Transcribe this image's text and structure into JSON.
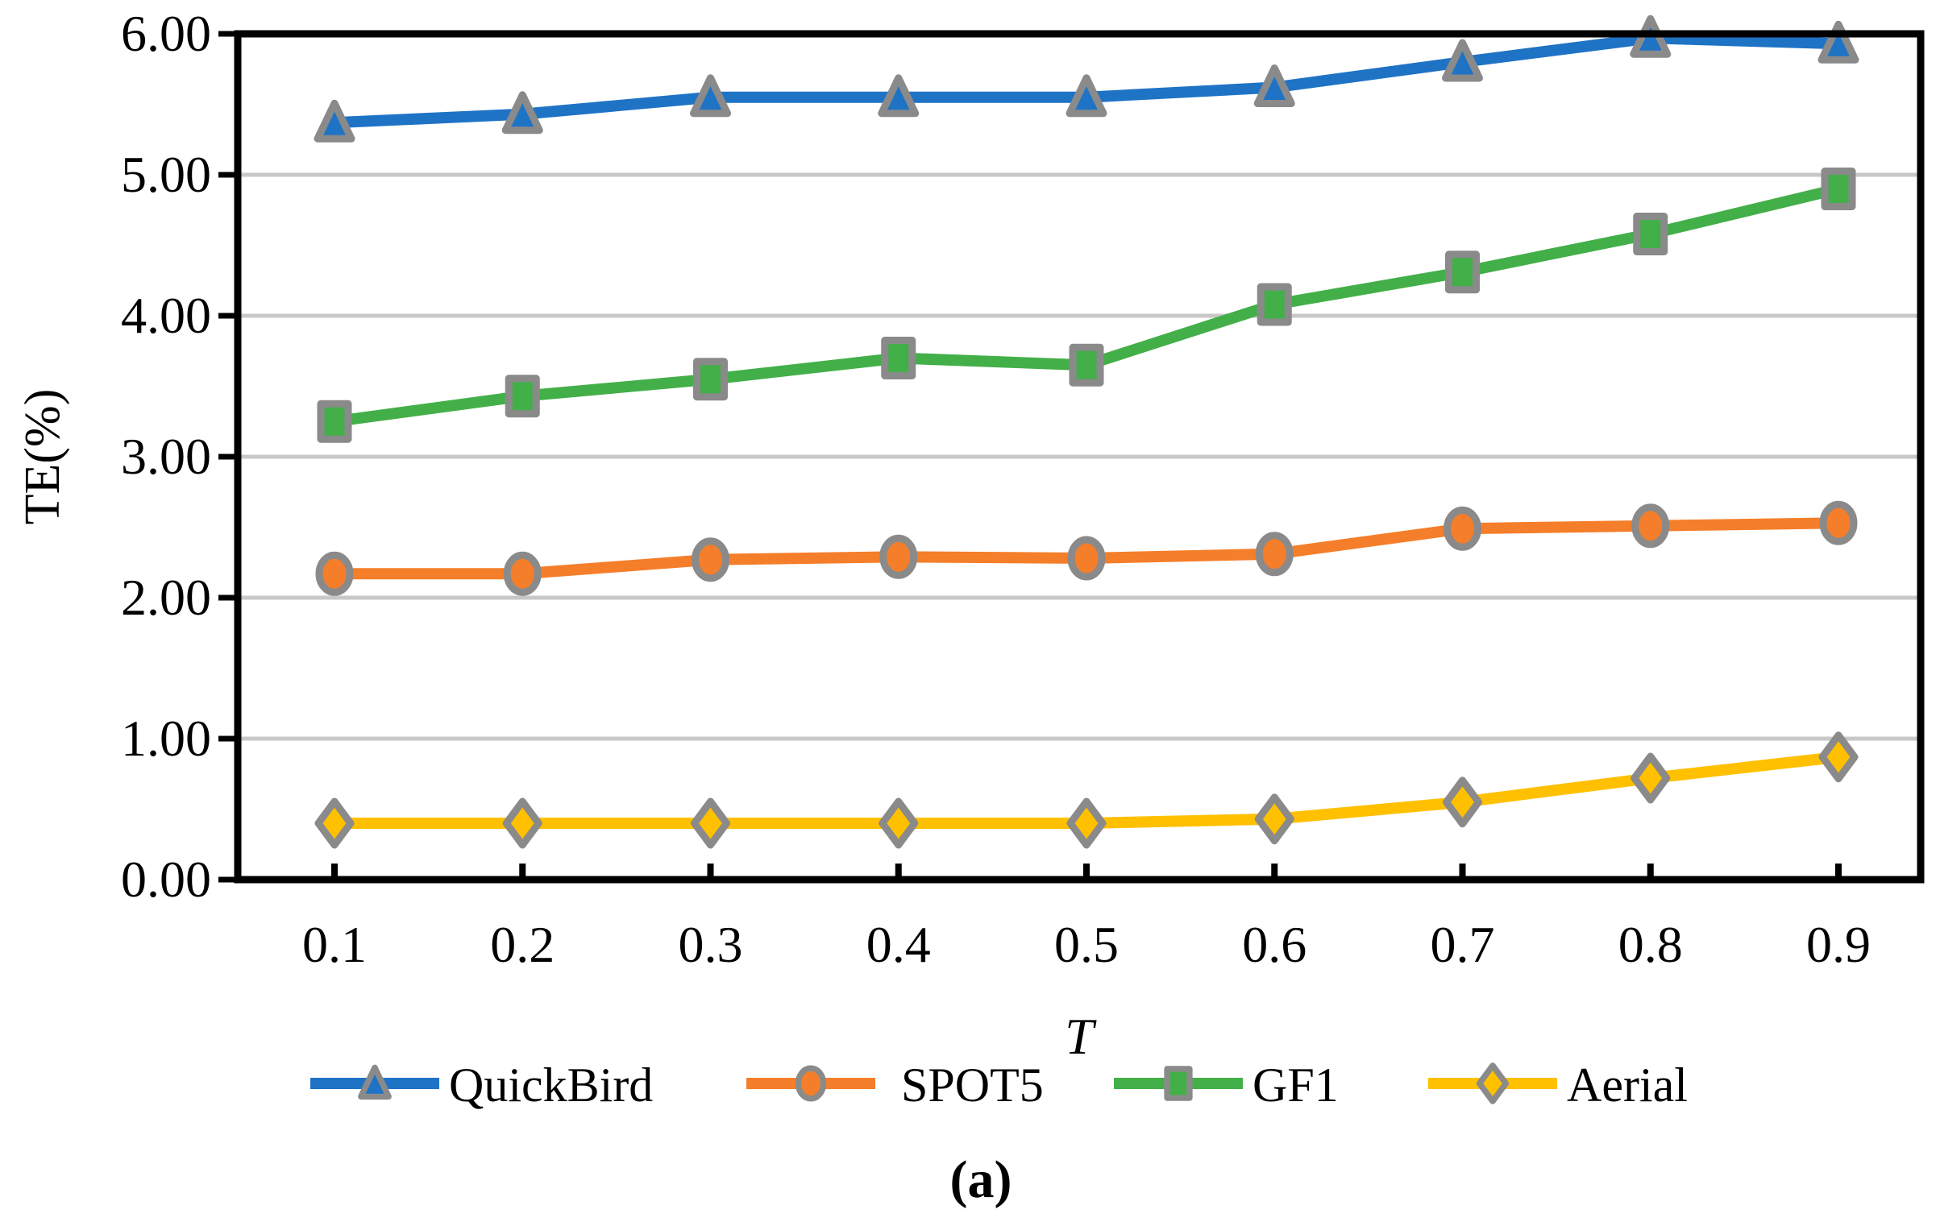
{
  "figure": {
    "caption": "(a)",
    "background": "#FFFFFF"
  },
  "chart_data": {
    "type": "line",
    "title": "",
    "xlabel": "T",
    "ylabel": "TE(%)",
    "x": [
      0.1,
      0.2,
      0.3,
      0.4,
      0.5,
      0.6,
      0.7,
      0.8,
      0.9
    ],
    "x_tick_labels": [
      "0.1",
      "0.2",
      "0.3",
      "0.4",
      "0.5",
      "0.6",
      "0.7",
      "0.8",
      "0.9"
    ],
    "y_tick_labels": [
      "0.00",
      "1.00",
      "2.00",
      "3.00",
      "4.00",
      "5.00",
      "6.00"
    ],
    "ylim": [
      0,
      6
    ],
    "ytick_step": 1.0,
    "grid": "horizontal-gridlines-at-1.00-intervals",
    "legend_position": "bottom",
    "series": [
      {
        "name": "QuickBird",
        "marker": "triangle",
        "color": "#1F73C5",
        "values": [
          5.37,
          5.43,
          5.55,
          5.55,
          5.55,
          5.62,
          5.8,
          5.97,
          5.93
        ]
      },
      {
        "name": "SPOT5",
        "marker": "circle",
        "color": "#F57E2A",
        "values": [
          2.17,
          2.17,
          2.27,
          2.29,
          2.28,
          2.31,
          2.49,
          2.51,
          2.53
        ]
      },
      {
        "name": "GF1",
        "marker": "square",
        "color": "#43AF49",
        "values": [
          3.25,
          3.43,
          3.55,
          3.7,
          3.65,
          4.08,
          4.31,
          4.58,
          4.9
        ]
      },
      {
        "name": "Aerial",
        "marker": "diamond",
        "color": "#FFC000",
        "values": [
          0.4,
          0.4,
          0.4,
          0.4,
          0.4,
          0.43,
          0.55,
          0.72,
          0.87
        ]
      }
    ],
    "marker_border_color": "#8A8A8A",
    "gridline_color": "#C8C8C8",
    "axis_color": "#000000"
  }
}
